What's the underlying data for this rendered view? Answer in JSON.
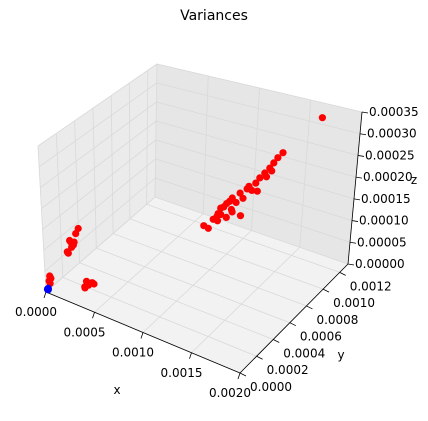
{
  "chart_data": {
    "type": "scatter",
    "title": "Variances",
    "xlabel": "x",
    "ylabel": "y",
    "zlabel": "z",
    "projection": "3d",
    "grid": true,
    "xlim": [
      0,
      0.002
    ],
    "ylim": [
      0,
      0.0013
    ],
    "zlim": [
      0,
      0.00035
    ],
    "xticks": [
      "0.0000",
      "0.0005",
      "0.0010",
      "0.0015",
      "0.0020"
    ],
    "yticks": [
      "0.0000",
      "0.0002",
      "0.0004",
      "0.0006",
      "0.0008",
      "0.0010",
      "0.0012"
    ],
    "zticks": [
      "0.00000",
      "0.00005",
      "0.00010",
      "0.00015",
      "0.00020",
      "0.00025",
      "0.00030",
      "0.00035"
    ],
    "colors": {
      "red": "#ff0000",
      "blue": "#0000ff"
    },
    "series": [
      {
        "color": "#ff0000",
        "points": [
          [
            2e-05,
            2e-05,
            2.5e-05
          ],
          [
            3e-05,
            3e-05,
            3e-05
          ],
          [
            2e-05,
            4e-05,
            2.8e-05
          ],
          [
            3e-05,
            2e-05,
            2e-05
          ],
          [
            2e-05,
            3e-05,
            3.5e-05
          ],
          [
            5e-05,
            0.00022,
            6e-05
          ],
          [
            6e-05,
            0.00025,
            7e-05
          ],
          [
            7e-05,
            0.00027,
            8e-05
          ],
          [
            6e-05,
            0.00023,
            9e-05
          ],
          [
            8e-05,
            0.00028,
            0.0001
          ],
          [
            7e-05,
            0.00026,
            7.5e-05
          ],
          [
            5e-05,
            0.00021,
            6.5e-05
          ],
          [
            9e-05,
            0.0003,
            0.00011
          ],
          [
            6e-05,
            0.00024,
            8.5e-05
          ],
          [
            0.0003,
            0.00012,
            2e-05
          ],
          [
            0.00033,
            0.00013,
            2.5e-05
          ],
          [
            0.00035,
            0.00014,
            3e-05
          ],
          [
            0.00032,
            0.00012,
            3.5e-05
          ],
          [
            0.00037,
            0.00015,
            2.8e-05
          ],
          [
            0.00031,
            0.00011,
            2e-05
          ],
          [
            0.00036,
            0.00014,
            3.2e-05
          ],
          [
            0.00115,
            0.00065,
            0.00016
          ],
          [
            0.00118,
            0.0007,
            0.00018
          ],
          [
            0.0012,
            0.00068,
            0.00017
          ],
          [
            0.00122,
            0.00072,
            0.00019
          ],
          [
            0.00125,
            0.00075,
            0.0002
          ],
          [
            0.00119,
            0.00066,
            0.000175
          ],
          [
            0.00121,
            0.0007,
            0.000185
          ],
          [
            0.00124,
            0.00073,
            0.000195
          ],
          [
            0.00117,
            0.00067,
            0.000165
          ],
          [
            0.0011,
            0.0006,
            0.00015
          ],
          [
            0.00112,
            0.00063,
            0.00014
          ],
          [
            0.00123,
            0.00071,
            0.00016
          ],
          [
            0.00126,
            0.00074,
            0.00017
          ],
          [
            0.0013,
            0.00078,
            0.00021
          ],
          [
            0.00135,
            0.0008,
            0.00022
          ],
          [
            0.0014,
            0.00084,
            0.00023
          ],
          [
            0.00142,
            0.00086,
            0.00024
          ],
          [
            0.00145,
            0.00088,
            0.00025
          ],
          [
            0.00148,
            0.0009,
            0.00026
          ],
          [
            0.0015,
            0.00092,
            0.00027
          ],
          [
            0.00138,
            0.00082,
            0.000215
          ],
          [
            0.00133,
            0.00078,
            0.0002
          ],
          [
            0.00128,
            0.00076,
            0.00019
          ],
          [
            0.00146,
            0.00089,
            0.00024
          ],
          [
            0.00152,
            0.00094,
            0.00028
          ],
          [
            0.00155,
            0.00096,
            0.00029
          ],
          [
            0.0015,
            0.0009,
            0.000255
          ],
          [
            0.00136,
            0.00081,
            0.000225
          ],
          [
            0.00141,
            0.00085,
            0.00021
          ],
          [
            0.00116,
            0.00069,
            0.00015
          ],
          [
            0.00127,
            0.00072,
            0.00018
          ],
          [
            0.00132,
            0.00077,
            0.00016
          ],
          [
            0.00175,
            0.00115,
            0.00035
          ]
        ]
      },
      {
        "color": "#0000ff",
        "points": [
          [
            1e-05,
            1e-05,
            5e-06
          ],
          [
            1.5e-05,
            1.2e-05,
            8e-06
          ],
          [
            1.2e-05,
            1.5e-05,
            4e-06
          ],
          [
            8e-06,
            1e-05,
            6e-06
          ],
          [
            1.3e-05,
            1.1e-05,
            7e-06
          ]
        ]
      }
    ]
  }
}
